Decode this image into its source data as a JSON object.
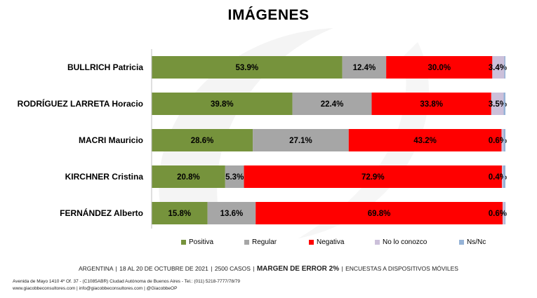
{
  "title": "IMÁGENES",
  "colors": {
    "Positiva": "#76933c",
    "Regular": "#a6a6a6",
    "Negativa": "#ff0000",
    "No lo conozco": "#ccc0da",
    "Ns/Nc": "#95b3d7"
  },
  "chart_data": {
    "type": "bar",
    "orientation": "horizontal",
    "stacked": true,
    "title": "IMÁGENES",
    "categories": [
      "BULLRICH Patricia",
      "RODRÍGUEZ LARRETA Horacio",
      "MACRI Mauricio",
      "KIRCHNER Cristina",
      "FERNÁNDEZ Alberto"
    ],
    "series": [
      {
        "name": "Positiva",
        "values": [
          53.9,
          39.8,
          28.6,
          20.8,
          15.8
        ],
        "labels": [
          "53.9%",
          "39.8%",
          "28.6%",
          "20.8%",
          "15.8%"
        ]
      },
      {
        "name": "Regular",
        "values": [
          12.4,
          22.4,
          27.1,
          5.3,
          13.6
        ],
        "labels": [
          "12.4%",
          "22.4%",
          "27.1%",
          "5.3%",
          "13.6%"
        ]
      },
      {
        "name": "Negativa",
        "values": [
          30.0,
          33.8,
          43.2,
          72.9,
          69.8
        ],
        "labels": [
          "30.0%",
          "33.8%",
          "43.2%",
          "72.9%",
          "69.8%"
        ]
      },
      {
        "name": "No lo conozco",
        "values": [
          3.4,
          3.5,
          0.6,
          0.4,
          0.6
        ],
        "labels": [
          "3.4%",
          "3.5%",
          "0.6%",
          "0.4%",
          "0.6%"
        ]
      },
      {
        "name": "Ns/Nc",
        "values": [
          0.3,
          0.5,
          0.5,
          0.6,
          0.2
        ],
        "labels": [
          "",
          "",
          "",
          "",
          ""
        ]
      }
    ],
    "xlim": [
      0,
      100
    ],
    "legend": [
      "Positiva",
      "Regular",
      "Negativa",
      "No lo conozco",
      "Ns/Nc"
    ],
    "legend_position": "bottom"
  },
  "footer": {
    "country": "ARGENTINA",
    "dates": "18 AL 20 DE OCTUBRE DE 2021",
    "cases": "2500 CASOS",
    "margin": "MARGEN DE ERROR 2%",
    "method": "ENCUESTAS A DISPOSITIVOS MÓVILES",
    "address": "Avenida de Mayo 1410 4º Of. 37 - (C1085ABR) Ciudad Autónoma de Buenos Aires - Tel.: (011) 5218-7777/78/79",
    "contacts": "www.giacobbeconsultores.com | info@giacobbeconsultores.com | @GiacobbeOP"
  }
}
